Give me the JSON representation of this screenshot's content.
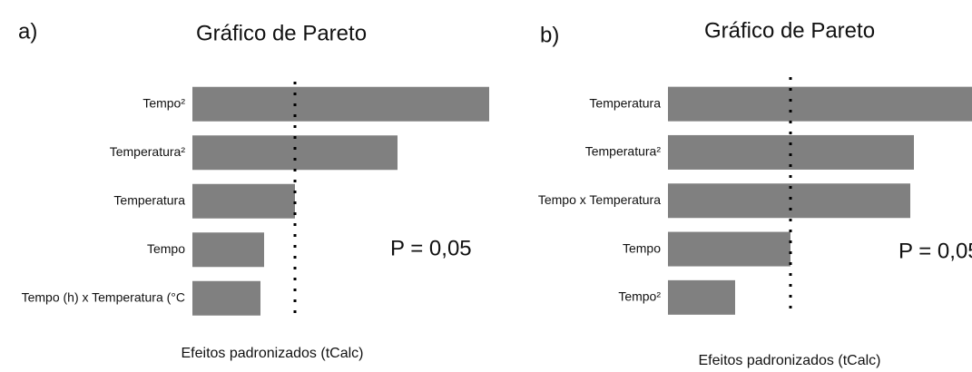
{
  "chart_data": [
    {
      "type": "bar",
      "orientation": "horizontal",
      "panel": "a)",
      "title": "Gráfico de Pareto",
      "categories": [
        "Tempo²",
        "Temperatura²",
        "Temperatura",
        "Tempo",
        "Tempo (h) x Temperatura (°C"
      ],
      "values": [
        32.7,
        22.6,
        11.3,
        7.9,
        7.5
      ],
      "color": "#808080",
      "xlim": [
        0,
        33
      ],
      "critical_value": 11.3,
      "annotation": "P = 0,05",
      "x_label": "Efeitos padronizados (tCalc)"
    },
    {
      "type": "bar",
      "orientation": "horizontal",
      "panel": "b)",
      "title": "Gráfico de Pareto",
      "categories": [
        "Temperatura",
        "Temperatura²",
        "Tempo x Temperatura",
        "Tempo",
        "Tempo²"
      ],
      "values": [
        33.5,
        27.1,
        26.7,
        13.5,
        7.4
      ],
      "color": "#808080",
      "xlim": [
        0,
        33.5
      ],
      "critical_value": 13.5,
      "annotation": "P = 0,05",
      "x_label": "Efeitos padronizados (tCalc)"
    }
  ]
}
